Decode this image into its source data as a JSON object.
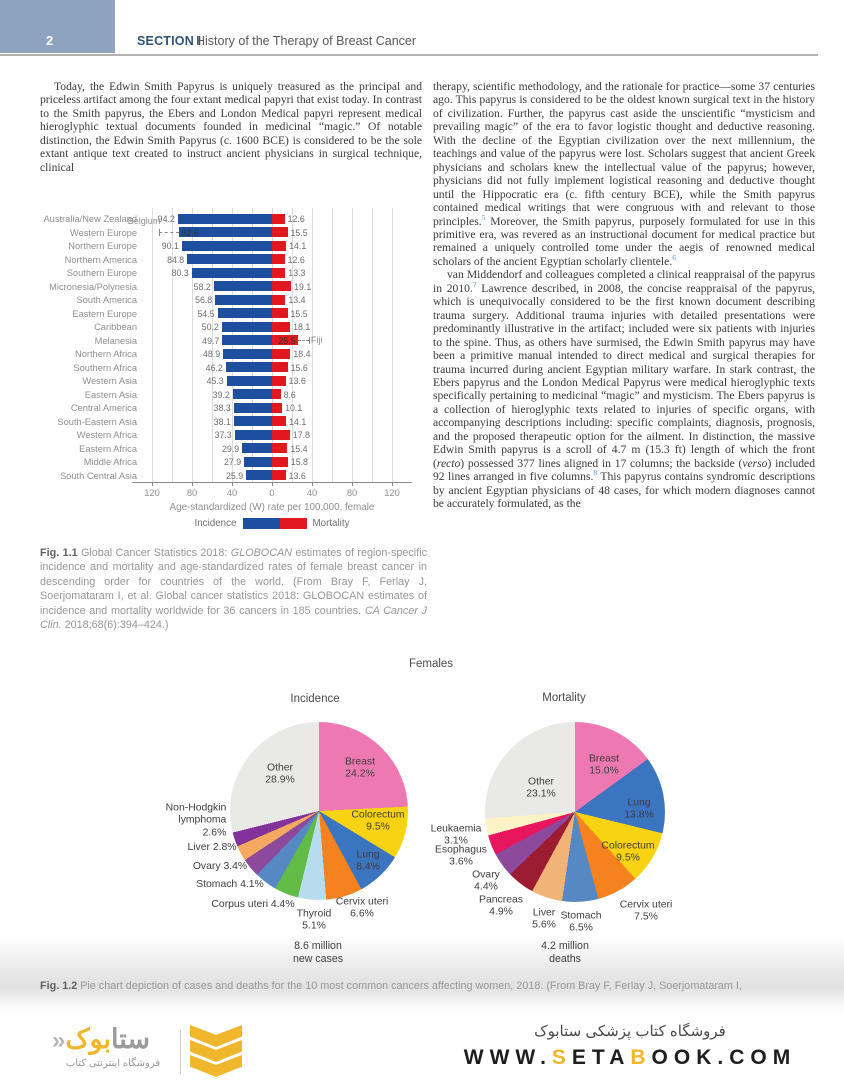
{
  "page": {
    "number": "2",
    "section_label": "SECTION I",
    "section_title": "History of the Therapy of Breast Cancer"
  },
  "article": {
    "left_column": [
      {
        "indent": true,
        "segments": [
          {
            "t": "Today, the Edwin Smith Papyrus is uniquely treasured as the principal and priceless artifact among the four extant medical papyri that exist today. In contrast to the Smith papyrus, the Ebers and London Medical papyri represent medical hieroglyphic textual documents founded in medicinal “magic.” Of notable distinction, the Edwin Smith Papyrus (c. 1600 BCE) is considered to be the sole extant antique text created to instruct ancient physicians in surgical technique, clinical"
          }
        ]
      }
    ],
    "right_column": [
      {
        "indent": false,
        "segments": [
          {
            "t": "therapy, scientific methodology, and the rationale for practice—some 37 centuries ago. This papyrus is considered to be the oldest known surgical text in the history of civilization. Further, the papyrus cast aside the unscientific “mysticism and prevailing magic” of the era to favor logistic thought and deductive reasoning. With the decline of the Egyptian civilization over the next millennium, the teachings and value of the papyrus were lost. Scholars suggest that ancient Greek physicians and scholars knew the intellectual value of the papyrus; however, physicians did not fully implement logistical reasoning and deductive thought until the Hippocratic era (c. fifth century BCE), while the Smith papyrus contained medical writings that were congruous with and relevant to those principles."
          },
          {
            "sup": "5"
          },
          {
            "t": " Moreover, the Smith papyrus, purposely formulated for use in this primitive era, was revered as an instructional document for medical practice but remained a uniquely controlled tome under the aegis of renowned medical scholars of the ancient Egyptian scholarly clientele."
          },
          {
            "sup": "6"
          }
        ]
      },
      {
        "indent": true,
        "segments": [
          {
            "t": "van Middendorf and colleagues completed a clinical reappraisal of the papyrus in 2010."
          },
          {
            "sup": "7"
          },
          {
            "t": " Lawrence described, in 2008, the concise reappraisal of the papyrus, which is unequivocally considered to be the first known document describing trauma surgery. Additional trauma injuries with detailed presentations were predominantly illustrative in the artifact; included were six patients with injuries to the spine. Thus, as others have surmised, the Edwin Smith papyrus may have been a primitive manual intended to direct medical and surgical therapies for trauma incurred during ancient Egyptian military warfare. In stark contrast, the Ebers papyrus and the London Medical Papyrus were medical hieroglyphic texts specifically pertaining to medicinal “magic” and mysticism. The Ebers papyrus is a collection of hieroglyphic texts related to injuries of specific organs, with accompanying descriptions including: specific complaints, diagnosis, prognosis, and the proposed therapeutic option for the ailment. In distinction, the massive Edwin Smith papyrus is a scroll of 4.7 m (15.3 ft) length of which the front ("
          },
          {
            "t": "recto",
            "i": true
          },
          {
            "t": ") possessed 377 lines aligned in 17 columns; the backside ("
          },
          {
            "t": "verso",
            "i": true
          },
          {
            "t": ") included 92 lines arranged in five columns."
          },
          {
            "sup": "8"
          },
          {
            "t": " This papyrus contains syndromic descriptions by ancient Egyptian physicians of 48 cases, for which modern diagnoses cannot be accurately formulated, as the"
          }
        ]
      }
    ]
  },
  "fig1_caption": {
    "label": "Fig. 1.1",
    "segments": [
      {
        "t": " Global Cancer Statistics 2018: "
      },
      {
        "t": "GLOBOCAN",
        "i": true
      },
      {
        "t": " estimates of region-specific incidence and mortality and age-standardized rates of female breast cancer in descending order for countries of the world. (From Bray F, Ferlay J, Soerjomataram I, et al. Global cancer statistics 2018: GLOBOCAN estimates of incidence and mortality worldwide for 36 cancers in 185 countries. "
      },
      {
        "t": "CA Cancer J Clin.",
        "i": true
      },
      {
        "t": " 2018;68(6):394–424.)"
      }
    ]
  },
  "fig2_caption": {
    "label": "Fig. 1.2",
    "text": " Pie chart depiction of cases and deaths for the 10 most common cancers affecting women, 2018. (From Bray F, Ferlay J, Soerjomataram I,"
  },
  "chart_data": [
    {
      "id": "fig1-bar",
      "type": "bar",
      "orientation": "horizontal-diverging",
      "categories": [
        "Australia/New Zealand",
        "Western Europe",
        "Northern Europe",
        "Northern America",
        "Southern Europe",
        "Micronesia/Polynesia",
        "South America",
        "Eastern Europe",
        "Caribbean",
        "Melanesia",
        "Northern Africa",
        "Southern Africa",
        "Western Asia",
        "Eastern Asia",
        "Central America",
        "South-Eastern Asia",
        "Western Africa",
        "Eastern Africa",
        "Middle Africa",
        "South Central Asia"
      ],
      "series": [
        {
          "name": "Incidence",
          "color": "#1d4f9e",
          "values": [
            94.2,
            92.6,
            90.1,
            84.8,
            80.3,
            58.2,
            56.8,
            54.5,
            50.2,
            49.7,
            48.9,
            46.2,
            45.3,
            39.2,
            38.3,
            38.1,
            37.3,
            29.9,
            27.9,
            25.9
          ]
        },
        {
          "name": "Mortality",
          "color": "#e1181f",
          "values": [
            12.6,
            15.5,
            14.1,
            12.6,
            13.3,
            19.1,
            13.4,
            15.5,
            18.1,
            25.5,
            18.4,
            15.6,
            13.6,
            8.6,
            10.1,
            14.1,
            17.8,
            15.4,
            15.8,
            13.6
          ]
        }
      ],
      "xlabel": "Age-standardized (W) rate per 100,000, female",
      "tick_values": [
        -120,
        -80,
        -40,
        0,
        40,
        80,
        120
      ],
      "tick_labels": [
        "120",
        "80",
        "40",
        "0",
        "40",
        "80",
        "120"
      ],
      "xlim": [
        -140,
        140
      ],
      "gridline_step": 20,
      "legend": [
        "Incidence",
        "Mortality"
      ],
      "annotations": [
        {
          "text": "Belgium",
          "category": "Western Europe",
          "side": "incidence",
          "to_value": 113.2
        },
        {
          "text": "Fiji",
          "category": "Melanesia",
          "side": "mortality",
          "to_value": 36.9
        }
      ]
    },
    {
      "id": "fig2-incidence",
      "type": "pie",
      "group_title": "Females",
      "title": "Incidence",
      "total_label_lines": [
        "8.6 million",
        "new cases"
      ],
      "slices": [
        {
          "label": "Breast",
          "pct": 24.2,
          "color": "#ee79b2"
        },
        {
          "label": "Colorectum",
          "pct": 9.5,
          "color": "#f8d311"
        },
        {
          "label": "Lung",
          "pct": 8.4,
          "color": "#3b74bf"
        },
        {
          "label": "Cervix uteri",
          "pct": 6.6,
          "color": "#f5821f"
        },
        {
          "label": "Thyroid",
          "pct": 5.1,
          "color": "#b7dcee"
        },
        {
          "label": "Corpus uteri",
          "pct": 4.4,
          "color": "#62bb46"
        },
        {
          "label": "Stomach",
          "pct": 4.1,
          "color": "#5688c3"
        },
        {
          "label": "Ovary",
          "pct": 3.4,
          "color": "#8d4a9d"
        },
        {
          "label": "Liver",
          "pct": 2.8,
          "color": "#f4a963"
        },
        {
          "label": "Non-Hodgkin lymphoma",
          "pct": 2.6,
          "color": "#81339b"
        },
        {
          "label": "Other",
          "pct": 28.9,
          "color": "#e9e9e6"
        }
      ]
    },
    {
      "id": "fig2-mortality",
      "type": "pie",
      "title": "Mortality",
      "total_label_lines": [
        "4.2 million",
        "deaths"
      ],
      "slices": [
        {
          "label": "Breast",
          "pct": 15.0,
          "color": "#ee79b2"
        },
        {
          "label": "Lung",
          "pct": 13.8,
          "color": "#3b74bf"
        },
        {
          "label": "Colorectum",
          "pct": 9.5,
          "color": "#f8d311"
        },
        {
          "label": "Cervix uteri",
          "pct": 7.5,
          "color": "#f5821f"
        },
        {
          "label": "Stomach",
          "pct": 6.5,
          "color": "#5688c3"
        },
        {
          "label": "Liver",
          "pct": 5.6,
          "color": "#f2b376"
        },
        {
          "label": "Pancreas",
          "pct": 4.9,
          "color": "#9c1c31"
        },
        {
          "label": "Ovary",
          "pct": 4.4,
          "color": "#8d4a9d"
        },
        {
          "label": "Esophagus",
          "pct": 3.6,
          "color": "#e8175d"
        },
        {
          "label": "Leukaemia",
          "pct": 3.1,
          "color": "#fbf3c5"
        },
        {
          "label": "Other",
          "pct": 23.1,
          "color": "#e9e9e6"
        }
      ]
    }
  ],
  "footer": {
    "brand_mark": "«",
    "brand_fa_gray": "ستا",
    "brand_fa_yellow": "بوک",
    "brand_tagline_fa": "فروشگاه اینترنتی کتاب",
    "store_line_fa": "فروشگاه کتاب پزشکی ستابوک",
    "url_segments": [
      {
        "t": "WWW.",
        "c": "#1e1e1e"
      },
      {
        "t": "S",
        "c": "#f0b62c"
      },
      {
        "t": "ETA",
        "c": "#1e1e1e"
      },
      {
        "t": "B",
        "c": "#f0b62c"
      },
      {
        "t": "OOK.COM",
        "c": "#1e1e1e"
      }
    ],
    "chevron_color": "#f0b62c"
  },
  "colors": {
    "header_box": "#8ea3bf",
    "section_label": "#2f5379",
    "incidence_bar": "#1d4f9e",
    "mortality_bar": "#e1181f",
    "ref_superscript": "#4f93c8",
    "brand_yellow": "#f0b62c"
  }
}
